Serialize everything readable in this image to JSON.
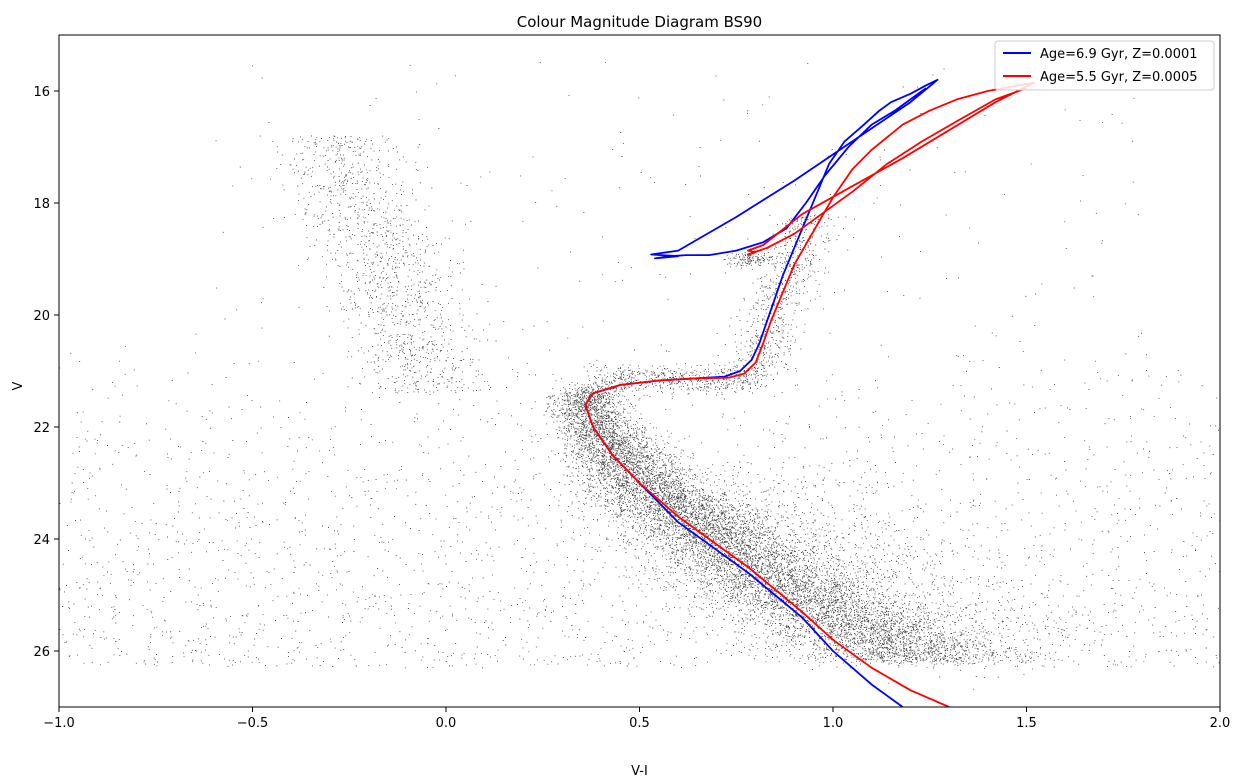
{
  "chart_data": {
    "type": "scatter",
    "title": "Colour Magnitude Diagram BS90",
    "xlabel": "V-I",
    "ylabel": "V",
    "xlim": [
      -1.0,
      2.0
    ],
    "ylim": [
      27.0,
      15.0
    ],
    "y_inverted": true,
    "x_ticks": [
      -1.0,
      -0.5,
      0.0,
      0.5,
      1.0,
      1.5,
      2.0
    ],
    "x_tick_labels": [
      "−1.0",
      "−0.5",
      "0.0",
      "0.5",
      "1.0",
      "1.5",
      "2.0"
    ],
    "y_ticks": [
      16,
      18,
      20,
      22,
      24,
      26
    ],
    "y_tick_labels": [
      "16",
      "18",
      "20",
      "22",
      "24",
      "26"
    ],
    "grid": false,
    "legend_position": "top-right",
    "scatter_color": "#000000",
    "scatter_description": "Photometric stars (black dots): main sequence running from turnoff near V-I 0.3, V 21.5 down to V-I 1.5, V 26; subgiant/red giant branch near V-I 0.8-1.0; young upper sequence near V-I -0.2 to 0, V 17-21; field stars scattered.",
    "series": [
      {
        "name": "Age=6.9 Gyr, Z=0.0001",
        "color": "#0000ff",
        "x": [
          1.18,
          1.1,
          1.0,
          0.92,
          0.85,
          0.78,
          0.7,
          0.6,
          0.5,
          0.43,
          0.38,
          0.36,
          0.38,
          0.45,
          0.55,
          0.65,
          0.72,
          0.76,
          0.79,
          0.81,
          0.83,
          0.85,
          0.87,
          0.9,
          0.93,
          0.96,
          0.99,
          1.03,
          1.08,
          1.12,
          1.15,
          1.2,
          1.24,
          1.27,
          1.2,
          1.05,
          0.9,
          0.75,
          0.6,
          0.55,
          0.53,
          0.6,
          0.54,
          0.58,
          0.62,
          0.68,
          0.75,
          0.82,
          0.88,
          0.93,
          0.98,
          1.04,
          1.1,
          1.16,
          1.2,
          1.24
        ],
        "y": [
          27.0,
          26.6,
          26.0,
          25.4,
          25.0,
          24.6,
          24.2,
          23.7,
          23.0,
          22.5,
          22.0,
          21.6,
          21.4,
          21.25,
          21.17,
          21.13,
          21.1,
          21.0,
          20.8,
          20.5,
          20.1,
          19.7,
          19.3,
          18.8,
          18.3,
          17.8,
          17.3,
          16.9,
          16.6,
          16.35,
          16.2,
          16.05,
          15.9,
          15.8,
          16.2,
          16.9,
          17.6,
          18.25,
          18.85,
          18.9,
          18.92,
          18.95,
          18.99,
          18.95,
          18.93,
          18.93,
          18.85,
          18.7,
          18.45,
          18.0,
          17.5,
          17.0,
          16.6,
          16.35,
          16.15,
          15.95
        ]
      },
      {
        "name": "Age=5.5 Gyr, Z=0.0005",
        "color": "#ff0000",
        "x": [
          1.3,
          1.2,
          1.1,
          1.0,
          0.92,
          0.85,
          0.78,
          0.7,
          0.6,
          0.5,
          0.43,
          0.38,
          0.36,
          0.38,
          0.45,
          0.55,
          0.65,
          0.73,
          0.77,
          0.8,
          0.82,
          0.84,
          0.87,
          0.9,
          0.95,
          1.0,
          1.05,
          1.1,
          1.18,
          1.25,
          1.32,
          1.4,
          1.48,
          1.52,
          1.42,
          1.3,
          1.18,
          1.05,
          0.92,
          0.82,
          0.78,
          0.8,
          0.78,
          0.83,
          0.9,
          0.97,
          1.05,
          1.14,
          1.23,
          1.33,
          1.42,
          1.5
        ],
        "y": [
          27.0,
          26.7,
          26.3,
          25.8,
          25.3,
          24.9,
          24.5,
          24.1,
          23.6,
          23.0,
          22.5,
          22.0,
          21.6,
          21.4,
          21.25,
          21.17,
          21.13,
          21.12,
          21.05,
          20.85,
          20.5,
          20.1,
          19.6,
          19.1,
          18.5,
          17.9,
          17.4,
          17.05,
          16.6,
          16.35,
          16.15,
          16.0,
          15.9,
          15.85,
          16.2,
          16.7,
          17.2,
          17.7,
          18.2,
          18.75,
          18.85,
          18.88,
          18.92,
          18.8,
          18.55,
          18.2,
          17.8,
          17.3,
          16.9,
          16.5,
          16.15,
          15.95
        ]
      }
    ]
  }
}
